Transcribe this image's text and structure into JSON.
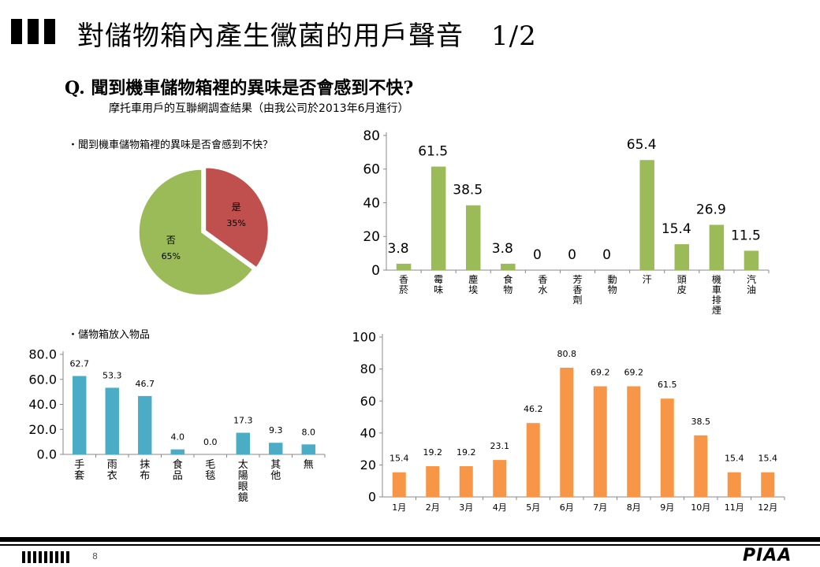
{
  "header": {
    "title": "對儲物箱內產生黴菌的用戶聲音　1/2",
    "question": "Q. 聞到機車儲物箱裡的異味是否會感到不快?",
    "subtitle": "摩托車用戶的互聯網調查結果（由我公司於2013年6月進行）"
  },
  "notes": {
    "pie_title": "・聞到機車儲物箱裡的異味是否會感到不快？",
    "items_title": "・儲物箱放入物品"
  },
  "chart_data": [
    {
      "type": "pie",
      "slices": [
        {
          "label": "是",
          "value": 35,
          "value_label": "35%",
          "color": "#c0504d"
        },
        {
          "label": "否",
          "value": 65,
          "value_label": "65%",
          "color": "#9bbb59"
        }
      ]
    },
    {
      "type": "bar",
      "categories": [
        "香菸",
        "霉味",
        "塵埃",
        "食物",
        "香水",
        "芳香劑",
        "動物",
        "汗",
        "頭皮",
        "機車排煙",
        "汽油"
      ],
      "values": [
        3.8,
        61.5,
        38.5,
        3.8,
        0,
        0,
        0,
        65.4,
        15.4,
        26.9,
        11.5
      ],
      "value_labels": [
        "3.8",
        "61.5",
        "38.5",
        "3.8",
        "0",
        "0",
        "0",
        "65.4",
        "15.4",
        "26.9",
        "11.5"
      ],
      "yticks": [
        "0",
        "20",
        "40",
        "60",
        "80"
      ],
      "ylim": [
        0,
        80
      ],
      "color": "#9bbb59"
    },
    {
      "type": "bar",
      "categories": [
        "手套",
        "雨衣",
        "抹布",
        "食品",
        "毛毯",
        "太陽眼鏡",
        "其他",
        "無"
      ],
      "values": [
        62.7,
        53.3,
        46.7,
        4.0,
        0.0,
        17.3,
        9.3,
        8.0
      ],
      "value_labels": [
        "62.7",
        "53.3",
        "46.7",
        "4.0",
        "0.0",
        "17.3",
        "9.3",
        "8.0"
      ],
      "yticks": [
        "0.0",
        "20.0",
        "40.0",
        "60.0",
        "80.0"
      ],
      "ylim": [
        0,
        80
      ],
      "color": "#4bacc6"
    },
    {
      "type": "bar",
      "categories": [
        "1月",
        "2月",
        "3月",
        "4月",
        "5月",
        "6月",
        "7月",
        "8月",
        "9月",
        "10月",
        "11月",
        "12月"
      ],
      "values": [
        15.4,
        19.2,
        19.2,
        23.1,
        46.2,
        80.8,
        69.2,
        69.2,
        61.5,
        38.5,
        15.4,
        15.4
      ],
      "value_labels": [
        "15.4",
        "19.2",
        "19.2",
        "23.1",
        "46.2",
        "80.8",
        "69.2",
        "69.2",
        "61.5",
        "38.5",
        "15.4",
        "15.4"
      ],
      "yticks": [
        "0",
        "20",
        "40",
        "60",
        "80",
        "100"
      ],
      "ylim": [
        0,
        100
      ],
      "color": "#f79646"
    }
  ],
  "footer": {
    "page_number": "8",
    "logo": "PIAA"
  }
}
